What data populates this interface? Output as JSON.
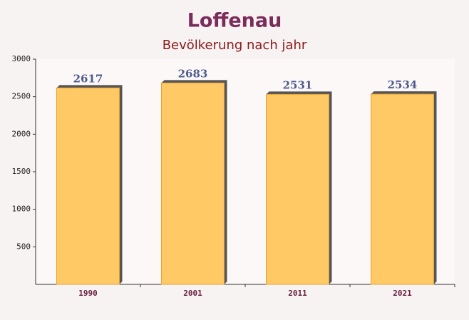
{
  "chart_data": {
    "type": "bar",
    "title": "Loffenau",
    "subtitle": "Bevölkerung nach jahr",
    "categories": [
      "1990",
      "2001",
      "2011",
      "2021"
    ],
    "values": [
      2617,
      2683,
      2531,
      2534
    ],
    "color": "#ffc966",
    "ylim": [
      0,
      3000
    ],
    "yticks": [
      500,
      1000,
      1500,
      2000,
      2500,
      3000
    ],
    "grid": false
  }
}
